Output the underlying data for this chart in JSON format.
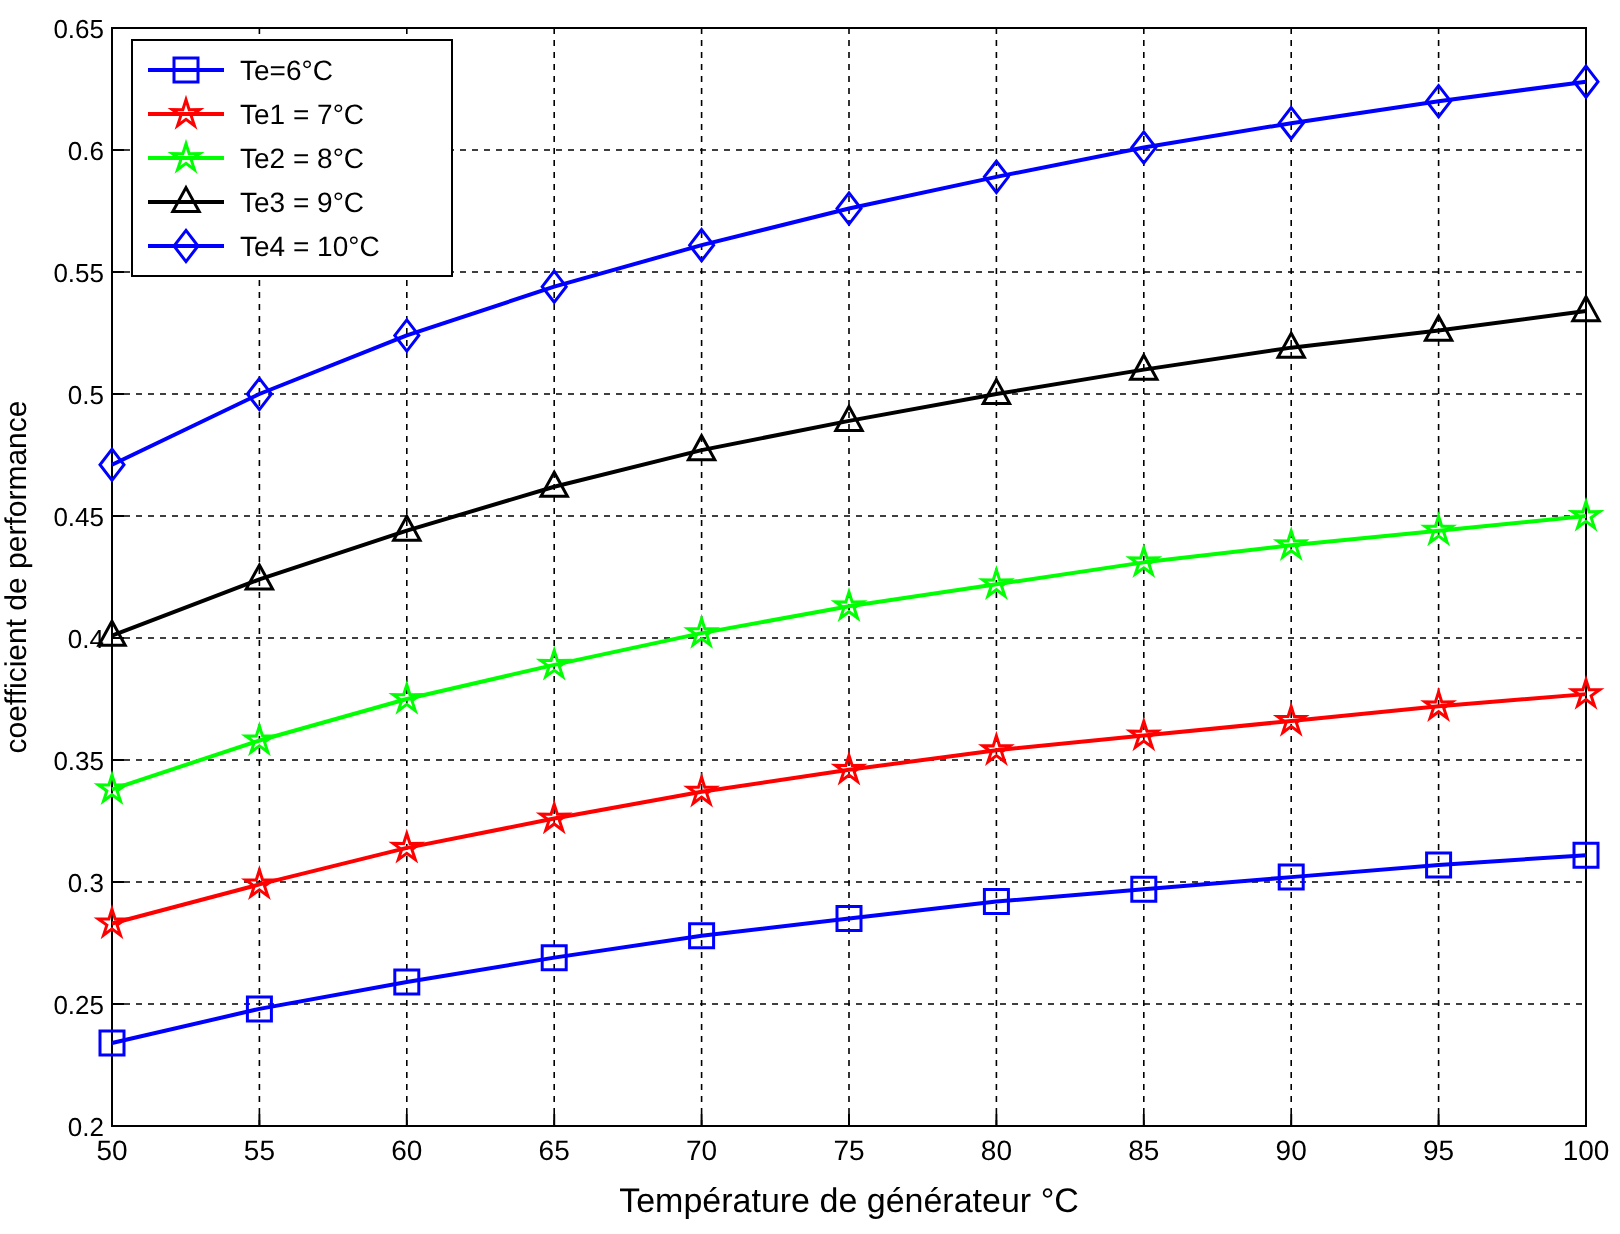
{
  "chart_data": {
    "type": "line",
    "xlabel": "Température de générateur °C",
    "ylabel": "coefficient de performance",
    "x": [
      50,
      55,
      60,
      65,
      70,
      75,
      80,
      85,
      90,
      95,
      100
    ],
    "xlim": [
      50,
      100
    ],
    "xticks": [
      50,
      55,
      60,
      65,
      70,
      75,
      80,
      85,
      90,
      95,
      100
    ],
    "ylim": [
      0.2,
      0.65
    ],
    "yticks": [
      0.2,
      0.25,
      0.3,
      0.35,
      0.4,
      0.45,
      0.5,
      0.55,
      0.6,
      0.65
    ],
    "grid": true,
    "legend": "top left",
    "line_style": "solid",
    "series": [
      {
        "name": "Te=6°C",
        "color": "#0000ff",
        "marker": "square",
        "values": [
          0.234,
          0.248,
          0.259,
          0.269,
          0.278,
          0.285,
          0.292,
          0.297,
          0.302,
          0.307,
          0.311
        ]
      },
      {
        "name": "Te1 = 7°C",
        "color": "#ff0000",
        "marker": "star",
        "values": [
          0.283,
          0.299,
          0.314,
          0.326,
          0.337,
          0.346,
          0.354,
          0.36,
          0.366,
          0.372,
          0.377
        ]
      },
      {
        "name": "Te2 = 8°C",
        "color": "#00ff00",
        "marker": "star",
        "values": [
          0.338,
          0.358,
          0.375,
          0.389,
          0.402,
          0.413,
          0.422,
          0.431,
          0.438,
          0.444,
          0.45
        ]
      },
      {
        "name": "Te3 = 9°C",
        "color": "#000000",
        "marker": "triangle",
        "values": [
          0.401,
          0.424,
          0.444,
          0.462,
          0.477,
          0.489,
          0.5,
          0.51,
          0.519,
          0.526,
          0.534
        ]
      },
      {
        "name": "Te4 = 10°C",
        "color": "#0000ff",
        "marker": "diamond",
        "values": [
          0.471,
          0.5,
          0.524,
          0.544,
          0.561,
          0.576,
          0.589,
          0.601,
          0.611,
          0.62,
          0.628
        ]
      }
    ]
  }
}
